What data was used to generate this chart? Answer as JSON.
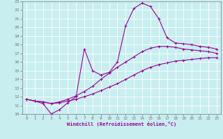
{
  "xlabel": "Windchill (Refroidissement éolien,°C)",
  "bg_color": "#c8eef0",
  "line_color": "#990099",
  "grid_color": "#ffffff",
  "xlim": [
    -0.5,
    23.5
  ],
  "ylim": [
    10,
    23
  ],
  "xticks": [
    0,
    1,
    2,
    3,
    4,
    5,
    6,
    7,
    8,
    9,
    10,
    11,
    12,
    13,
    14,
    15,
    16,
    17,
    18,
    19,
    20,
    21,
    22,
    23
  ],
  "yticks": [
    10,
    11,
    12,
    13,
    14,
    15,
    16,
    17,
    18,
    19,
    20,
    21,
    22,
    23
  ],
  "curve1_x": [
    0,
    1,
    2,
    3,
    4,
    5,
    6,
    7,
    8,
    9,
    10,
    11,
    12,
    13,
    14,
    15,
    16,
    17,
    18,
    19,
    20,
    21,
    22,
    23
  ],
  "curve1_y": [
    11.7,
    11.5,
    11.4,
    11.2,
    11.3,
    11.5,
    11.7,
    12.0,
    12.3,
    12.7,
    13.1,
    13.5,
    14.0,
    14.5,
    15.0,
    15.4,
    15.7,
    15.9,
    16.1,
    16.2,
    16.3,
    16.4,
    16.5,
    16.5
  ],
  "curve2_x": [
    0,
    1,
    2,
    3,
    4,
    5,
    6,
    7,
    8,
    9,
    10,
    11,
    12,
    13,
    14,
    15,
    16,
    17,
    18,
    19,
    20,
    21,
    22,
    23
  ],
  "curve2_y": [
    11.7,
    11.5,
    11.4,
    11.2,
    11.4,
    11.7,
    12.1,
    12.6,
    13.2,
    14.0,
    14.7,
    15.4,
    16.0,
    16.6,
    17.2,
    17.6,
    17.8,
    17.8,
    17.7,
    17.5,
    17.4,
    17.3,
    17.2,
    17.0
  ],
  "curve3_x": [
    0,
    1,
    2,
    3,
    4,
    5,
    6,
    7,
    8,
    9,
    10,
    11,
    12,
    13,
    14,
    15,
    16,
    17,
    18,
    19,
    20,
    21,
    22,
    23
  ],
  "curve3_y": [
    11.7,
    11.5,
    11.2,
    10.0,
    10.5,
    11.3,
    12.0,
    17.5,
    15.0,
    14.5,
    14.8,
    16.0,
    20.2,
    22.2,
    22.8,
    22.4,
    21.0,
    18.8,
    18.2,
    18.1,
    18.0,
    17.8,
    17.7,
    17.5
  ],
  "marker": "+"
}
